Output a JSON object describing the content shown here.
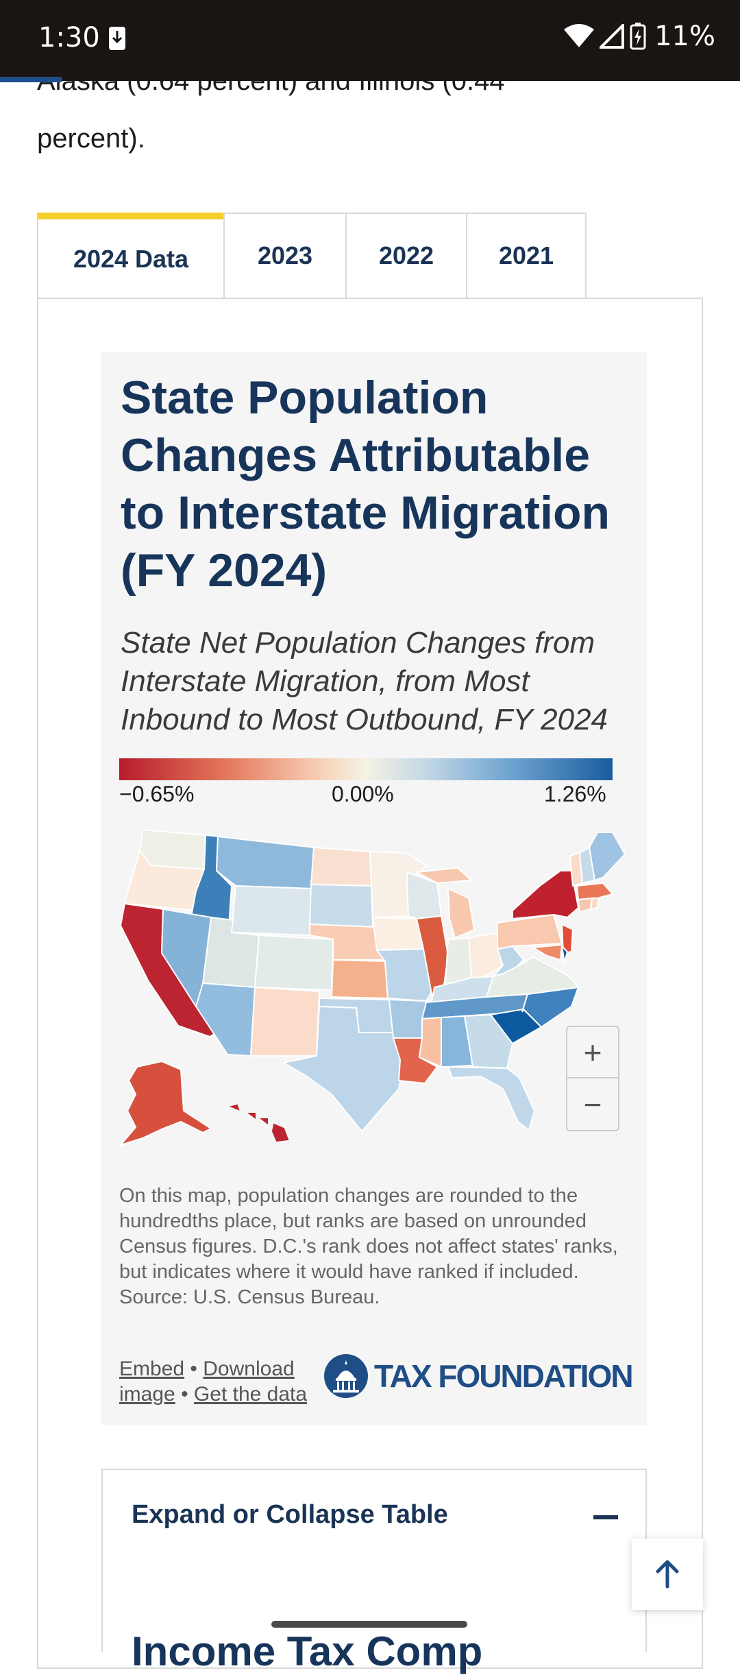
{
  "status_bar": {
    "time": "1:30",
    "battery_percent": "11%",
    "icons": [
      "download-icon",
      "wifi-icon",
      "signal-icon",
      "battery-charging-icon"
    ]
  },
  "article": {
    "partial_line": "Alaska (0.64 percent) and Illinois (0.44",
    "continued_text": "percent)."
  },
  "tabs": [
    {
      "label": "2024 Data",
      "active": true
    },
    {
      "label": "2023",
      "active": false
    },
    {
      "label": "2022",
      "active": false
    },
    {
      "label": "2021",
      "active": false
    }
  ],
  "card": {
    "title": "State Population Changes Attributable to Interstate Migration (FY 2024)",
    "subtitle": "State Net Population Changes from Interstate Migration, from Most Inbound to Most Outbound, FY 2024",
    "legend": {
      "min_label": "−0.65%",
      "mid_label": "0.00%",
      "max_label": "1.26%",
      "color_min": "#b71c2c",
      "color_mid": "#f6f2e4",
      "color_max": "#1a5c9f"
    },
    "zoom": {
      "plus": "+",
      "minus": "−"
    },
    "note": "On this map, population changes are rounded to the hundredths place, but ranks are based on unrounded Census figures. D.C.'s rank does not affect states' ranks, but indicates where it would have ranked if included.",
    "source": "Source: U.S. Census Bureau.",
    "links": {
      "embed": "Embed",
      "download": "Download image",
      "get_data": "Get the data",
      "separator": "•"
    },
    "logo_text": "TAX FOUNDATION"
  },
  "accordion": {
    "title": "Expand or Collapse Table",
    "body_title_partial": "Income Tax Comp"
  },
  "colors": {
    "accent_tab": "#f3cf2d",
    "brand_navy": "#17355a",
    "logo_blue": "#1f4d85"
  }
}
